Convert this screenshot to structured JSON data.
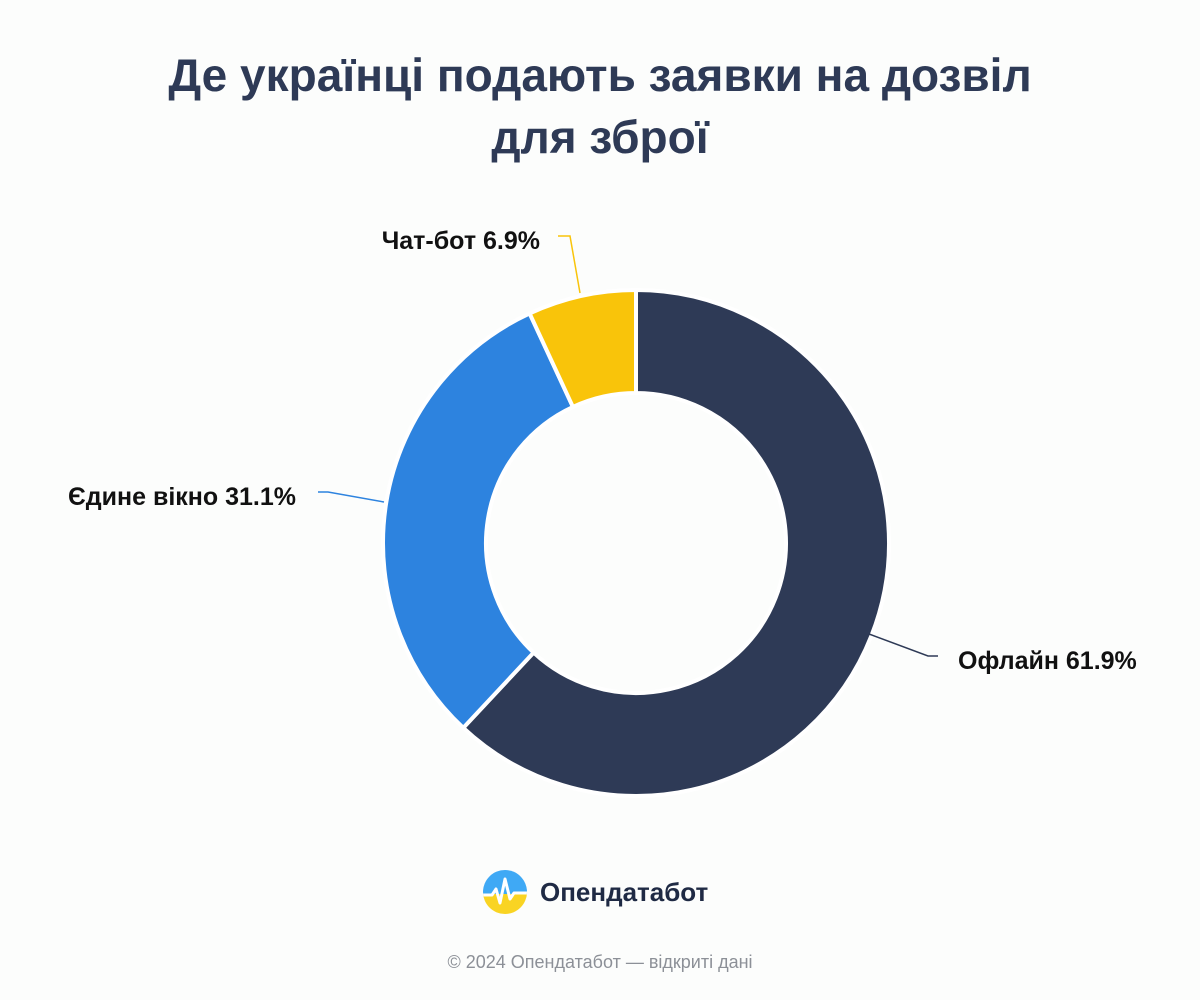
{
  "chart_data": {
    "type": "pie",
    "title": "Де українці подають заявки на дозвіл для зброї",
    "slices": [
      {
        "label": "Офлайн 61.9%",
        "value": 61.9,
        "color": "#2e3a56"
      },
      {
        "label": "Єдине вікно 31.1%",
        "value": 31.1,
        "color": "#2d83df"
      },
      {
        "label": "Чат-бот 6.9%",
        "value": 6.9,
        "color": "#f9c40a"
      }
    ]
  },
  "brand": {
    "name": "Опендатабот"
  },
  "footer": {
    "text": "© 2024 Опендатабот — відкриті дані"
  }
}
